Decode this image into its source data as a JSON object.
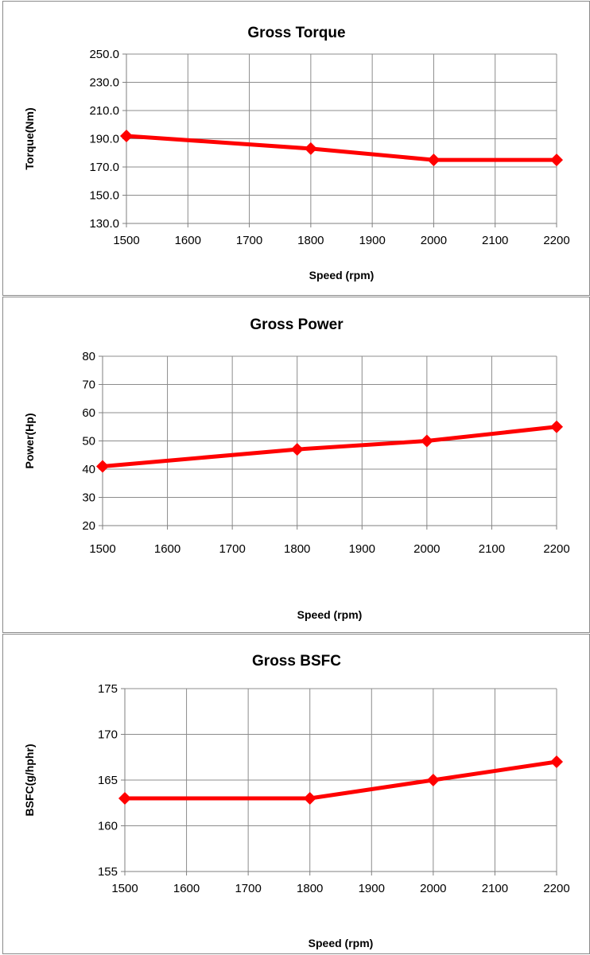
{
  "colors": {
    "series": "#ff0000",
    "grid": "#8c8c8c",
    "border": "#8a8a8a"
  },
  "chart_data": [
    {
      "type": "line",
      "title": "Gross Torque",
      "xlabel": "Speed (rpm)",
      "ylabel": "Torque(Nm)",
      "x": [
        1500,
        1800,
        2000,
        2200
      ],
      "values": [
        192,
        183,
        175,
        175
      ],
      "xlim": [
        1500,
        2200
      ],
      "ylim": [
        130,
        250
      ],
      "xticks": [
        "1500",
        "1600",
        "1700",
        "1800",
        "1900",
        "2000",
        "2100",
        "2200"
      ],
      "yticks": [
        "130.0",
        "150.0",
        "170.0",
        "190.0",
        "210.0",
        "230.0",
        "250.0"
      ],
      "grid": true,
      "marker": "diamond"
    },
    {
      "type": "line",
      "title": "Gross Power",
      "xlabel": "Speed (rpm)",
      "ylabel": "Power(Hp)",
      "x": [
        1500,
        1800,
        2000,
        2200
      ],
      "values": [
        41,
        47,
        50,
        55
      ],
      "xlim": [
        1500,
        2200
      ],
      "ylim": [
        20,
        80
      ],
      "xticks": [
        "1500",
        "1600",
        "1700",
        "1800",
        "1900",
        "2000",
        "2100",
        "2200"
      ],
      "yticks": [
        "20",
        "30",
        "40",
        "50",
        "60",
        "70",
        "80"
      ],
      "grid": true,
      "marker": "diamond"
    },
    {
      "type": "line",
      "title": "Gross BSFC",
      "xlabel": "Speed (rpm)",
      "ylabel": "BSFC(g/hphr)",
      "x": [
        1500,
        1800,
        2000,
        2200
      ],
      "values": [
        163,
        163,
        165,
        167
      ],
      "xlim": [
        1500,
        2200
      ],
      "ylim": [
        155,
        175
      ],
      "xticks": [
        "1500",
        "1600",
        "1700",
        "1800",
        "1900",
        "2000",
        "2100",
        "2200"
      ],
      "yticks": [
        "155",
        "160",
        "165",
        "170",
        "175"
      ],
      "grid": true,
      "marker": "diamond"
    }
  ]
}
